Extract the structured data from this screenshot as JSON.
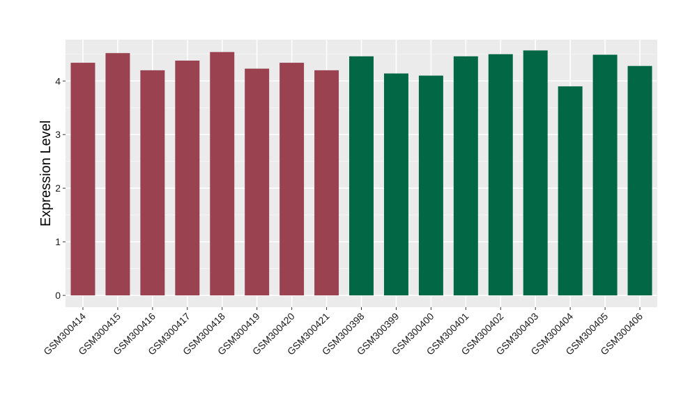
{
  "chart_data": {
    "type": "bar",
    "title": "",
    "xlabel": "",
    "ylabel": "Expression Level",
    "ylim": [
      -0.22,
      4.77
    ],
    "yticks": [
      0,
      1,
      2,
      3,
      4
    ],
    "grid": true,
    "legend": "none",
    "categories": [
      "GSM300414",
      "GSM300415",
      "GSM300416",
      "GSM300417",
      "GSM300418",
      "GSM300419",
      "GSM300420",
      "GSM300421",
      "GSM300398",
      "GSM300399",
      "GSM300400",
      "GSM300401",
      "GSM300402",
      "GSM300403",
      "GSM300404",
      "GSM300405",
      "GSM300406"
    ],
    "values": [
      4.34,
      4.52,
      4.2,
      4.38,
      4.54,
      4.23,
      4.34,
      4.2,
      4.46,
      4.14,
      4.1,
      4.46,
      4.5,
      4.57,
      3.9,
      4.49,
      4.28
    ],
    "groups": [
      0,
      0,
      0,
      0,
      0,
      0,
      0,
      0,
      1,
      1,
      1,
      1,
      1,
      1,
      1,
      1,
      1
    ],
    "group_colors": [
      "#9a4250",
      "#026744"
    ]
  },
  "colors": {
    "panel_background": "#ebebeb",
    "grid_major": "#ffffff",
    "grid_minor": "#f5f5f5"
  }
}
